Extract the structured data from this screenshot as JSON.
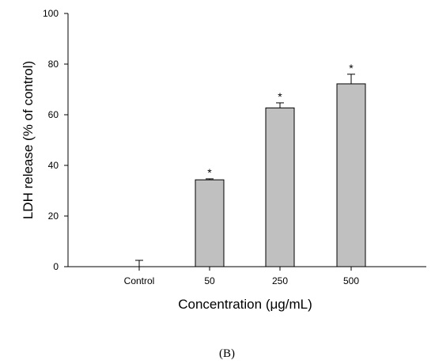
{
  "chart_data": {
    "type": "bar",
    "categories": [
      "Control",
      "50",
      "250",
      "500"
    ],
    "values": [
      0,
      34.3,
      62.7,
      72.2
    ],
    "error_plus": [
      2.5,
      0.4,
      2.0,
      3.8
    ],
    "significance": [
      "",
      "*",
      "*",
      "*"
    ],
    "xlabel": "Concentration (μg/mL)",
    "ylabel": "LDH release (% of control)",
    "ylim": [
      0,
      100
    ],
    "yticks": [
      0,
      20,
      40,
      60,
      80,
      100
    ],
    "grid": false,
    "legend": "none",
    "bar_color": "#c0c0c0",
    "panel_label": "(B)"
  }
}
